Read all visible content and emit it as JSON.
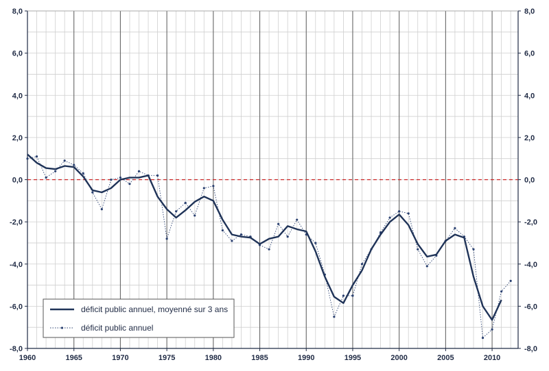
{
  "chart_data": {
    "type": "line",
    "title": "",
    "xlabel": "",
    "ylabel": "",
    "xlim": [
      1960,
      2012.8
    ],
    "ylim": [
      -8,
      8
    ],
    "y_ticks": [
      8,
      6,
      4,
      2,
      0,
      -2,
      -4,
      -6,
      -8
    ],
    "y_tick_labels": [
      "8,0",
      "6,0",
      "4,0",
      "2,0",
      "0,0",
      "-2,0",
      "-4,0",
      "-6,0",
      "-8,0"
    ],
    "x_ticks": [
      1960,
      1965,
      1970,
      1975,
      1980,
      1985,
      1990,
      1995,
      2000,
      2005,
      2010
    ],
    "x_tick_labels": [
      "1960",
      "1965",
      "1970",
      "1975",
      "1980",
      "1985",
      "1990",
      "1995",
      "2000",
      "2005",
      "2010"
    ],
    "reference_line": {
      "y": 0,
      "style": "dashed",
      "color": "#cc2222"
    },
    "grid": {
      "minor_vertical_every_year": true,
      "major_vertical_every_5_years": true,
      "horizontal_every": 1
    },
    "legend_position": "bottom-left",
    "colors": {
      "main": "#1f3358",
      "annual": "#2a4070",
      "grid_minor": "#cfcfcf",
      "grid_major": "#666666"
    },
    "series": [
      {
        "name": "déficit public annuel, moyenné sur 3 ans",
        "style": "thick-line",
        "x": [
          1960,
          1961,
          1962,
          1963,
          1964,
          1965,
          1966,
          1967,
          1968,
          1969,
          1970,
          1971,
          1972,
          1973,
          1974,
          1975,
          1976,
          1977,
          1978,
          1979,
          1980,
          1981,
          1982,
          1983,
          1984,
          1985,
          1986,
          1987,
          1988,
          1989,
          1990,
          1991,
          1992,
          1993,
          1994,
          1995,
          1996,
          1997,
          1998,
          1999,
          2000,
          2001,
          2002,
          2003,
          2004,
          2005,
          2006,
          2007,
          2008,
          2009,
          2010,
          2011
        ],
        "values": [
          1.2,
          0.8,
          0.55,
          0.5,
          0.65,
          0.6,
          0.15,
          -0.5,
          -0.6,
          -0.4,
          0.0,
          0.1,
          0.1,
          0.2,
          -0.8,
          -1.4,
          -1.8,
          -1.45,
          -1.05,
          -0.8,
          -1.0,
          -1.9,
          -2.6,
          -2.7,
          -2.75,
          -3.05,
          -2.8,
          -2.7,
          -2.2,
          -2.35,
          -2.45,
          -3.4,
          -4.6,
          -5.55,
          -5.85,
          -5.0,
          -4.3,
          -3.3,
          -2.6,
          -2.0,
          -1.65,
          -2.15,
          -3.05,
          -3.65,
          -3.55,
          -2.9,
          -2.6,
          -2.75,
          -4.6,
          -6.0,
          -6.65,
          -5.7
        ]
      },
      {
        "name": "déficit public annuel",
        "style": "dotted-with-markers",
        "x": [
          1960,
          1961,
          1962,
          1963,
          1964,
          1965,
          1966,
          1967,
          1968,
          1969,
          1970,
          1971,
          1972,
          1973,
          1974,
          1975,
          1976,
          1977,
          1978,
          1979,
          1980,
          1981,
          1982,
          1983,
          1984,
          1985,
          1986,
          1987,
          1988,
          1989,
          1990,
          1991,
          1992,
          1993,
          1994,
          1995,
          1996,
          1997,
          1998,
          1999,
          2000,
          2001,
          2002,
          2003,
          2004,
          2005,
          2006,
          2007,
          2008,
          2009,
          2010,
          2011,
          2012
        ],
        "values": [
          1.0,
          1.1,
          0.1,
          0.4,
          0.9,
          0.7,
          0.3,
          -0.6,
          -1.4,
          0.0,
          0.1,
          -0.2,
          0.4,
          0.2,
          0.2,
          -2.8,
          -1.5,
          -1.1,
          -1.7,
          -0.4,
          -0.3,
          -2.4,
          -2.9,
          -2.6,
          -2.7,
          -3.1,
          -3.3,
          -2.1,
          -2.7,
          -1.9,
          -2.6,
          -3.0,
          -4.5,
          -6.5,
          -5.5,
          -5.5,
          -4.0,
          -3.3,
          -2.5,
          -1.8,
          -1.5,
          -1.6,
          -3.3,
          -4.1,
          -3.6,
          -2.9,
          -2.3,
          -2.7,
          -3.3,
          -7.5,
          -7.1,
          -5.3,
          -4.8
        ]
      }
    ]
  }
}
